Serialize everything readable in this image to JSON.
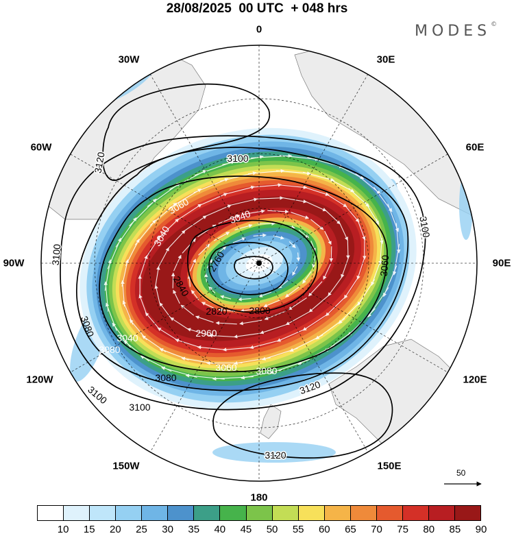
{
  "title": "28/08/2025  00 UTC  + 048 hrs",
  "brand": "MODES",
  "brand_mark": "©",
  "longitude_labels": {
    "lon_0": "0",
    "lon_30e": "30E",
    "lon_60e": "60E",
    "lon_90e": "90E",
    "lon_120e": "120E",
    "lon_150e": "150E",
    "lon_180": "180",
    "lon_150w": "150W",
    "lon_120w": "120W",
    "lon_90w": "90W",
    "lon_60w": "60W",
    "lon_30w": "30W"
  },
  "contour_labels": {
    "c1": "3120",
    "c2": "3100",
    "c3": "3100",
    "c4": "3100",
    "c5": "3060",
    "c6": "3080",
    "c7": "3080",
    "c8": "3080",
    "c9": "3080",
    "c10": "3100",
    "c11": "3100",
    "c12": "3120",
    "c13": "3120",
    "c14": "2800",
    "c15": "2820",
    "c16": "2840",
    "c17": "2760",
    "c18": "3040",
    "c19": "2960",
    "c20": "3060",
    "c21": "3060",
    "c22": "3040",
    "c23": "3040"
  },
  "vector_reference": "50",
  "colorbar": {
    "ticks": [
      "10",
      "15",
      "20",
      "25",
      "30",
      "35",
      "40",
      "45",
      "50",
      "55",
      "60",
      "65",
      "70",
      "75",
      "80",
      "85",
      "90"
    ],
    "colors": [
      "#ffffff",
      "#dff2fc",
      "#bfe6fa",
      "#95d0f2",
      "#6fb5e6",
      "#4d92cc",
      "#3c9f88",
      "#46b34b",
      "#7cc44a",
      "#c3dd55",
      "#f7e05a",
      "#f5b448",
      "#ef8a3a",
      "#e55a2e",
      "#d43027",
      "#b81e22",
      "#991818"
    ]
  },
  "colors": {
    "land": "#ececec",
    "coast": "#7a7a7a",
    "ring_0": "#ffffff",
    "ring_1": "#dff2fc",
    "ring_2": "#95d0f2",
    "ring_3": "#6fb5e6",
    "ring_4": "#4d92cc",
    "ring_5": "#3c9f88",
    "ring_6": "#46b34b",
    "ring_7": "#7cc44a",
    "ring_8": "#c3dd55",
    "ring_9": "#f7e05a",
    "ring_10": "#f5b448",
    "ring_11": "#ef8a3a",
    "ring_12": "#e55a2e",
    "ring_13": "#d43027",
    "ring_14": "#b81e22",
    "ring_15": "#991818"
  }
}
